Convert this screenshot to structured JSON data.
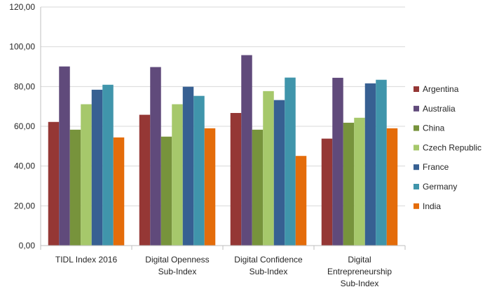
{
  "chart_data": {
    "type": "bar",
    "categories": [
      [
        "TIDL Index 2016"
      ],
      [
        "Digital Openness",
        "Sub-Index"
      ],
      [
        "Digital Confidence",
        "Sub-Index"
      ],
      [
        "Digital",
        "Entrepreneurship",
        "Sub-Index"
      ]
    ],
    "series": [
      {
        "name": "Argentina",
        "color": "#953735",
        "values": [
          62.2,
          65.8,
          66.7,
          53.8
        ]
      },
      {
        "name": "Australia",
        "color": "#604A7B",
        "values": [
          90.1,
          89.8,
          95.8,
          84.4
        ]
      },
      {
        "name": "China",
        "color": "#77933C",
        "values": [
          58.3,
          54.8,
          58.3,
          61.8
        ]
      },
      {
        "name": "Czech Republic",
        "color": "#A6C86B",
        "values": [
          71.1,
          71.1,
          77.7,
          64.3
        ]
      },
      {
        "name": "France",
        "color": "#376092",
        "values": [
          78.4,
          79.9,
          73.2,
          81.6
        ]
      },
      {
        "name": "Germany",
        "color": "#4095AB",
        "values": [
          80.9,
          75.3,
          84.5,
          83.4
        ]
      },
      {
        "name": "India",
        "color": "#E46C0A",
        "values": [
          54.4,
          59.0,
          45.1,
          59.0
        ]
      }
    ],
    "y_ticks": [
      "0,00",
      "20,00",
      "40,00",
      "60,00",
      "80,00",
      "100,00",
      "120,00"
    ],
    "ylim": [
      0,
      120
    ],
    "grid": true,
    "legend_position": "right",
    "title": "",
    "xlabel": "",
    "ylabel": ""
  }
}
